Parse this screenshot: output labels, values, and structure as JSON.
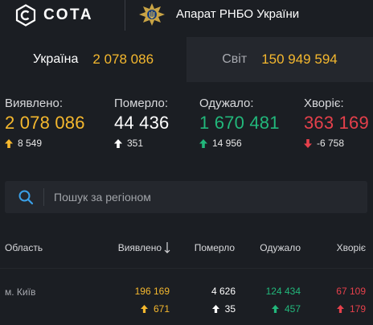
{
  "header": {
    "logo_text": "СОТА",
    "org_name": "Апарат РНБО України"
  },
  "tabs": [
    {
      "label": "Україна",
      "value": "2 078 086",
      "active": true
    },
    {
      "label": "Світ",
      "value": "150 949 594",
      "active": false
    }
  ],
  "stats": [
    {
      "label": "Виявлено:",
      "value": "2 078 086",
      "delta": "8 549",
      "direction": "up",
      "color": "#f5b82e"
    },
    {
      "label": "Померло:",
      "value": "44 436",
      "delta": "351",
      "direction": "up",
      "color": "#ffffff"
    },
    {
      "label": "Одужало:",
      "value": "1 670 481",
      "delta": "14 956",
      "direction": "up",
      "color": "#22b77b"
    },
    {
      "label": "Хворіє:",
      "value": "363 169",
      "delta": "-6 758",
      "direction": "down",
      "color": "#e5404b"
    }
  ],
  "search": {
    "placeholder": "Пошук за регіоном"
  },
  "table": {
    "headers": {
      "region": "Область",
      "detected": "Виявлено",
      "deaths": "Померло",
      "recovered": "Одужало",
      "sick": "Хворіє"
    },
    "rows": [
      {
        "region": "м. Київ",
        "detected": "196 169",
        "detected_delta": "671",
        "deaths": "4 626",
        "deaths_delta": "35",
        "recovered": "124 434",
        "recovered_delta": "457",
        "sick": "67 109",
        "sick_delta": "179"
      }
    ]
  },
  "colors": {
    "accent": "#f5b82e",
    "green": "#22b77b",
    "red": "#e5404b",
    "background": "#1b1e23",
    "panel": "#24272d"
  }
}
